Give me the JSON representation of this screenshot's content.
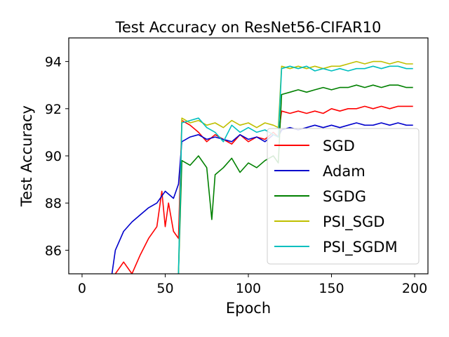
{
  "chart_data": {
    "type": "line",
    "title": "Test Accuracy on ResNet56-CIFAR10",
    "xlabel": "Epoch",
    "ylabel": "Test Accuracy",
    "xlim": [
      -8,
      208
    ],
    "ylim": [
      85,
      95
    ],
    "xticks": [
      0,
      50,
      100,
      150,
      200
    ],
    "yticks": [
      86,
      88,
      90,
      92,
      94
    ],
    "grid": false,
    "legend_position": "lower-right",
    "series": [
      {
        "name": "SGD",
        "color": "#ff0000",
        "x": [
          20,
          25,
          30,
          35,
          40,
          45,
          48,
          50,
          52,
          55,
          58,
          60,
          65,
          70,
          75,
          80,
          85,
          90,
          95,
          100,
          105,
          110,
          115,
          118,
          120,
          125,
          130,
          135,
          140,
          145,
          150,
          155,
          160,
          165,
          170,
          175,
          180,
          185,
          190,
          195,
          199
        ],
        "y": [
          85.0,
          85.5,
          85.0,
          85.8,
          86.5,
          87.0,
          88.5,
          87.0,
          88.0,
          86.8,
          86.5,
          91.5,
          91.3,
          91.0,
          90.6,
          90.9,
          90.7,
          90.5,
          90.9,
          90.6,
          90.8,
          90.7,
          91.0,
          90.8,
          91.9,
          91.8,
          91.9,
          91.8,
          91.9,
          91.8,
          92.0,
          91.9,
          92.0,
          92.0,
          92.1,
          92.0,
          92.1,
          92.0,
          92.1,
          92.1,
          92.1
        ]
      },
      {
        "name": "Adam",
        "color": "#0000cc",
        "x": [
          18,
          20,
          25,
          30,
          35,
          40,
          45,
          50,
          55,
          58,
          60,
          65,
          70,
          75,
          80,
          85,
          90,
          95,
          100,
          105,
          110,
          115,
          118,
          120,
          125,
          130,
          135,
          140,
          145,
          150,
          155,
          160,
          165,
          170,
          175,
          180,
          185,
          190,
          195,
          199
        ],
        "y": [
          85.0,
          86.0,
          86.8,
          87.2,
          87.5,
          87.8,
          88.0,
          88.5,
          88.2,
          88.8,
          90.6,
          90.8,
          90.9,
          90.7,
          90.8,
          90.7,
          90.6,
          90.9,
          90.7,
          90.8,
          90.6,
          90.9,
          90.8,
          91.1,
          91.2,
          91.1,
          91.2,
          91.3,
          91.2,
          91.3,
          91.2,
          91.3,
          91.4,
          91.3,
          91.3,
          91.4,
          91.3,
          91.4,
          91.3,
          91.3
        ]
      },
      {
        "name": "SGDG",
        "color": "#008000",
        "x": [
          58,
          60,
          65,
          70,
          75,
          78,
          80,
          85,
          90,
          95,
          100,
          105,
          110,
          115,
          118,
          120,
          125,
          130,
          135,
          140,
          145,
          150,
          155,
          160,
          165,
          170,
          175,
          180,
          185,
          190,
          195,
          199
        ],
        "y": [
          85.0,
          89.8,
          89.6,
          90.0,
          89.5,
          87.3,
          89.2,
          89.5,
          89.9,
          89.3,
          89.7,
          89.5,
          89.8,
          90.0,
          89.7,
          92.6,
          92.7,
          92.8,
          92.7,
          92.8,
          92.9,
          92.8,
          92.9,
          92.9,
          93.0,
          92.9,
          93.0,
          92.9,
          93.0,
          93.0,
          92.9,
          92.9
        ]
      },
      {
        "name": "PSI_SGD",
        "color": "#bfbf00",
        "x": [
          58,
          60,
          65,
          70,
          75,
          80,
          85,
          90,
          95,
          100,
          105,
          110,
          115,
          118,
          120,
          125,
          130,
          135,
          140,
          145,
          150,
          155,
          160,
          165,
          170,
          175,
          180,
          185,
          190,
          195,
          199
        ],
        "y": [
          85.0,
          91.6,
          91.4,
          91.5,
          91.3,
          91.4,
          91.2,
          91.5,
          91.3,
          91.4,
          91.2,
          91.4,
          91.3,
          91.2,
          93.8,
          93.7,
          93.8,
          93.7,
          93.8,
          93.7,
          93.8,
          93.8,
          93.9,
          94.0,
          93.9,
          94.0,
          94.0,
          93.9,
          94.0,
          93.9,
          93.9
        ]
      },
      {
        "name": "PSI_SGDM",
        "color": "#00bfbf",
        "x": [
          58,
          60,
          65,
          70,
          75,
          80,
          85,
          90,
          95,
          100,
          105,
          110,
          115,
          118,
          120,
          125,
          130,
          135,
          140,
          145,
          150,
          155,
          160,
          165,
          170,
          175,
          180,
          185,
          190,
          195,
          199
        ],
        "y": [
          85.0,
          91.4,
          91.5,
          91.6,
          91.2,
          91.0,
          90.6,
          91.3,
          91.0,
          91.2,
          91.0,
          91.1,
          90.9,
          90.8,
          93.7,
          93.8,
          93.7,
          93.8,
          93.6,
          93.7,
          93.6,
          93.7,
          93.6,
          93.7,
          93.7,
          93.8,
          93.7,
          93.8,
          93.8,
          93.7,
          93.7
        ]
      }
    ]
  }
}
